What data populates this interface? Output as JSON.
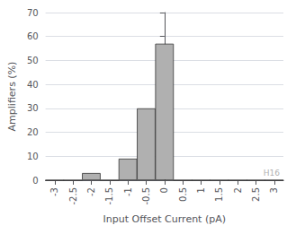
{
  "chart_data": {
    "type": "bar",
    "x": [
      -3,
      -2.5,
      -2,
      -1.5,
      -1,
      -0.5,
      0,
      0.5,
      1,
      1.5,
      2,
      2.5,
      3
    ],
    "values": [
      0,
      0,
      3,
      0,
      9,
      30,
      57,
      0,
      0,
      0,
      0,
      0,
      0
    ],
    "color": "#b0b0b0",
    "xlabel": "Input Offset Current (pA)",
    "ylabel": "Amplifiers (%)",
    "xlim": [
      -3.25,
      3.25
    ],
    "xticks": [
      -3,
      -2.5,
      -2,
      -1.5,
      -1,
      -0.5,
      0,
      0.5,
      1,
      1.5,
      2,
      2.5,
      3
    ],
    "ylim": [
      0,
      70
    ],
    "yticks": [
      0,
      10,
      20,
      30,
      40,
      50,
      60,
      70
    ],
    "grid": "y",
    "annotations": [
      {
        "text": "H16",
        "color": "#b0b0b0"
      }
    ]
  }
}
